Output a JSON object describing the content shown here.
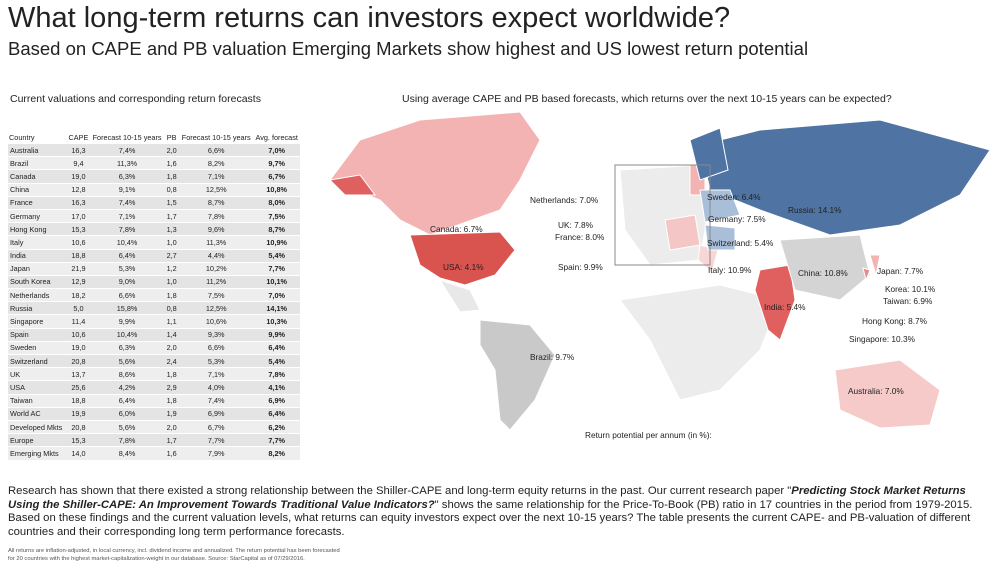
{
  "header": {
    "title": "What long-term returns can investors expect worldwide?",
    "subtitle": "Based on CAPE and PB valuation Emerging Markets show highest and US lowest return potential"
  },
  "table": {
    "caption": "Current valuations and corresponding return forecasts",
    "header": [
      "Country",
      "CAPE",
      "Forecast 10-15 years",
      "PB",
      "Forecast 10-15 years",
      "Avg. forecast"
    ],
    "rows": [
      [
        "Australia",
        "16,3",
        "7,4%",
        "2,0",
        "6,6%",
        "7,0%"
      ],
      [
        "Brazil",
        "9,4",
        "11,3%",
        "1,6",
        "8,2%",
        "9,7%"
      ],
      [
        "Canada",
        "19,0",
        "6,3%",
        "1,8",
        "7,1%",
        "6,7%"
      ],
      [
        "China",
        "12,8",
        "9,1%",
        "0,8",
        "12,5%",
        "10,8%"
      ],
      [
        "France",
        "16,3",
        "7,4%",
        "1,5",
        "8,7%",
        "8,0%"
      ],
      [
        "Germany",
        "17,0",
        "7,1%",
        "1,7",
        "7,8%",
        "7,5%"
      ],
      [
        "Hong Kong",
        "15,3",
        "7,8%",
        "1,3",
        "9,6%",
        "8,7%"
      ],
      [
        "Italy",
        "10,6",
        "10,4%",
        "1,0",
        "11,3%",
        "10,9%"
      ],
      [
        "India",
        "18,8",
        "6,4%",
        "2,7",
        "4,4%",
        "5,4%"
      ],
      [
        "Japan",
        "21,9",
        "5,3%",
        "1,2",
        "10,2%",
        "7,7%"
      ],
      [
        "South Korea",
        "12,9",
        "9,0%",
        "1,0",
        "11,2%",
        "10,1%"
      ],
      [
        "Netherlands",
        "18,2",
        "6,6%",
        "1,8",
        "7,5%",
        "7,0%"
      ],
      [
        "Russia",
        "5,0",
        "15,8%",
        "0,8",
        "12,5%",
        "14,1%"
      ],
      [
        "Singapore",
        "11,4",
        "9,9%",
        "1,1",
        "10,6%",
        "10,3%"
      ],
      [
        "Spain",
        "10,6",
        "10,4%",
        "1,4",
        "9,3%",
        "9,9%"
      ],
      [
        "Sweden",
        "19,0",
        "6,3%",
        "2,0",
        "6,6%",
        "6,4%"
      ],
      [
        "Switzerland",
        "20,8",
        "5,6%",
        "2,4",
        "5,3%",
        "5,4%"
      ],
      [
        "UK",
        "13,7",
        "8,6%",
        "1,8",
        "7,1%",
        "7,8%"
      ],
      [
        "USA",
        "25,6",
        "4,2%",
        "2,9",
        "4,0%",
        "4,1%"
      ],
      [
        "Taiwan",
        "18,8",
        "6,4%",
        "1,8",
        "7,4%",
        "6,9%"
      ],
      [
        "World AC",
        "19,9",
        "6,0%",
        "1,9",
        "6,9%",
        "6,4%"
      ],
      [
        "Developed Mkts",
        "20,8",
        "5,6%",
        "2,0",
        "6,7%",
        "6,2%"
      ],
      [
        "Europe",
        "15,3",
        "7,8%",
        "1,7",
        "7,7%",
        "7,7%"
      ],
      [
        "Emerging Mkts",
        "14,0",
        "8,4%",
        "1,6",
        "7,9%",
        "8,2%"
      ]
    ]
  },
  "map": {
    "caption": "Using average CAPE and PB based forecasts, which returns over the next 10-15 years can be expected?",
    "labels": [
      "Canada: 6.7%",
      "USA: 4.1%",
      "Netherlands: 7.0%",
      "UK: 7.8%",
      "France: 8.0%",
      "Spain: 9.9%",
      "Sweden: 6.4%",
      "Germany: 7.5%",
      "Switzerland: 5.4%",
      "Russia: 14.1%",
      "Italy: 10.9%",
      "China: 10.8%",
      "Japan: 7.7%",
      "Korea: 10.1%",
      "Taiwan: 6.9%",
      "India: 5.4%",
      "Hong Kong: 8.7%",
      "Singapore: 10.3%",
      "Brazil: 9.7%",
      "Australia: 7.0%"
    ],
    "legend": "Return potential per annum (in %):"
  },
  "text": {
    "paragraph": [
      "Research has shown that there existed a strong relationship between the Shiller-CAPE and long-term equity returns in the past. Our current research paper \"",
      "Predicting Stock Market Returns Using the Shiller-CAPE: An Improvement Towards Traditional Value Indicators?",
      "\" shows the same relationship for the Price-To-Book (PB) ratio in 17 countries in the period from 1979-2015. Based on these findings and the current valuation levels, what returns can equity investors expect over the next 10-15 years? The table presents the current CAPE- and PB-valuation of different countries and their corresponding long term performance forecasts."
    ],
    "footnote": [
      "All returns are inflation-adjusted, in local currency, incl. dividend income and annualized. The return potential has been forecasted",
      "for 20 countries with the highest market-capitalization-weight in our database. Source: StarCapital as of 07/29/2016."
    ]
  }
}
